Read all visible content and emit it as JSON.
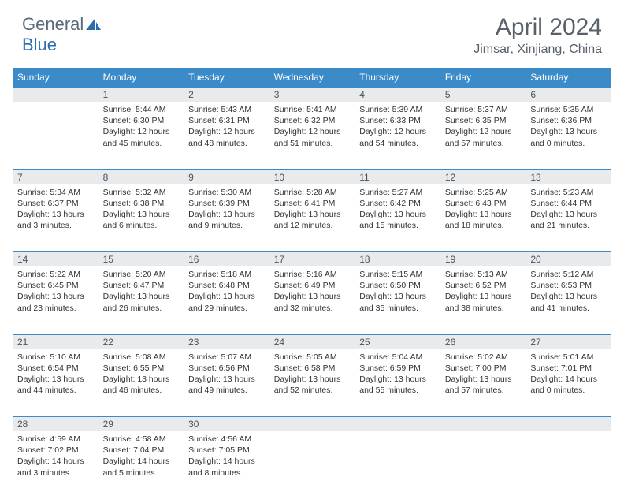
{
  "logo": {
    "text1": "General",
    "text2": "Blue"
  },
  "title": "April 2024",
  "location": "Jimsar, Xinjiang, China",
  "colors": {
    "header_bg": "#3b8bc9",
    "header_text": "#ffffff",
    "daynum_bg": "#e9eaeb",
    "border": "#3b8bc9",
    "title_color": "#58606a",
    "logo_color": "#5a6a78",
    "text_color": "#333333"
  },
  "weekdays": [
    "Sunday",
    "Monday",
    "Tuesday",
    "Wednesday",
    "Thursday",
    "Friday",
    "Saturday"
  ],
  "weeks": [
    {
      "days": [
        {
          "n": "",
          "lines": []
        },
        {
          "n": "1",
          "lines": [
            "Sunrise: 5:44 AM",
            "Sunset: 6:30 PM",
            "Daylight: 12 hours and 45 minutes."
          ]
        },
        {
          "n": "2",
          "lines": [
            "Sunrise: 5:43 AM",
            "Sunset: 6:31 PM",
            "Daylight: 12 hours and 48 minutes."
          ]
        },
        {
          "n": "3",
          "lines": [
            "Sunrise: 5:41 AM",
            "Sunset: 6:32 PM",
            "Daylight: 12 hours and 51 minutes."
          ]
        },
        {
          "n": "4",
          "lines": [
            "Sunrise: 5:39 AM",
            "Sunset: 6:33 PM",
            "Daylight: 12 hours and 54 minutes."
          ]
        },
        {
          "n": "5",
          "lines": [
            "Sunrise: 5:37 AM",
            "Sunset: 6:35 PM",
            "Daylight: 12 hours and 57 minutes."
          ]
        },
        {
          "n": "6",
          "lines": [
            "Sunrise: 5:35 AM",
            "Sunset: 6:36 PM",
            "Daylight: 13 hours and 0 minutes."
          ]
        }
      ]
    },
    {
      "days": [
        {
          "n": "7",
          "lines": [
            "Sunrise: 5:34 AM",
            "Sunset: 6:37 PM",
            "Daylight: 13 hours and 3 minutes."
          ]
        },
        {
          "n": "8",
          "lines": [
            "Sunrise: 5:32 AM",
            "Sunset: 6:38 PM",
            "Daylight: 13 hours and 6 minutes."
          ]
        },
        {
          "n": "9",
          "lines": [
            "Sunrise: 5:30 AM",
            "Sunset: 6:39 PM",
            "Daylight: 13 hours and 9 minutes."
          ]
        },
        {
          "n": "10",
          "lines": [
            "Sunrise: 5:28 AM",
            "Sunset: 6:41 PM",
            "Daylight: 13 hours and 12 minutes."
          ]
        },
        {
          "n": "11",
          "lines": [
            "Sunrise: 5:27 AM",
            "Sunset: 6:42 PM",
            "Daylight: 13 hours and 15 minutes."
          ]
        },
        {
          "n": "12",
          "lines": [
            "Sunrise: 5:25 AM",
            "Sunset: 6:43 PM",
            "Daylight: 13 hours and 18 minutes."
          ]
        },
        {
          "n": "13",
          "lines": [
            "Sunrise: 5:23 AM",
            "Sunset: 6:44 PM",
            "Daylight: 13 hours and 21 minutes."
          ]
        }
      ]
    },
    {
      "days": [
        {
          "n": "14",
          "lines": [
            "Sunrise: 5:22 AM",
            "Sunset: 6:45 PM",
            "Daylight: 13 hours and 23 minutes."
          ]
        },
        {
          "n": "15",
          "lines": [
            "Sunrise: 5:20 AM",
            "Sunset: 6:47 PM",
            "Daylight: 13 hours and 26 minutes."
          ]
        },
        {
          "n": "16",
          "lines": [
            "Sunrise: 5:18 AM",
            "Sunset: 6:48 PM",
            "Daylight: 13 hours and 29 minutes."
          ]
        },
        {
          "n": "17",
          "lines": [
            "Sunrise: 5:16 AM",
            "Sunset: 6:49 PM",
            "Daylight: 13 hours and 32 minutes."
          ]
        },
        {
          "n": "18",
          "lines": [
            "Sunrise: 5:15 AM",
            "Sunset: 6:50 PM",
            "Daylight: 13 hours and 35 minutes."
          ]
        },
        {
          "n": "19",
          "lines": [
            "Sunrise: 5:13 AM",
            "Sunset: 6:52 PM",
            "Daylight: 13 hours and 38 minutes."
          ]
        },
        {
          "n": "20",
          "lines": [
            "Sunrise: 5:12 AM",
            "Sunset: 6:53 PM",
            "Daylight: 13 hours and 41 minutes."
          ]
        }
      ]
    },
    {
      "days": [
        {
          "n": "21",
          "lines": [
            "Sunrise: 5:10 AM",
            "Sunset: 6:54 PM",
            "Daylight: 13 hours and 44 minutes."
          ]
        },
        {
          "n": "22",
          "lines": [
            "Sunrise: 5:08 AM",
            "Sunset: 6:55 PM",
            "Daylight: 13 hours and 46 minutes."
          ]
        },
        {
          "n": "23",
          "lines": [
            "Sunrise: 5:07 AM",
            "Sunset: 6:56 PM",
            "Daylight: 13 hours and 49 minutes."
          ]
        },
        {
          "n": "24",
          "lines": [
            "Sunrise: 5:05 AM",
            "Sunset: 6:58 PM",
            "Daylight: 13 hours and 52 minutes."
          ]
        },
        {
          "n": "25",
          "lines": [
            "Sunrise: 5:04 AM",
            "Sunset: 6:59 PM",
            "Daylight: 13 hours and 55 minutes."
          ]
        },
        {
          "n": "26",
          "lines": [
            "Sunrise: 5:02 AM",
            "Sunset: 7:00 PM",
            "Daylight: 13 hours and 57 minutes."
          ]
        },
        {
          "n": "27",
          "lines": [
            "Sunrise: 5:01 AM",
            "Sunset: 7:01 PM",
            "Daylight: 14 hours and 0 minutes."
          ]
        }
      ]
    },
    {
      "days": [
        {
          "n": "28",
          "lines": [
            "Sunrise: 4:59 AM",
            "Sunset: 7:02 PM",
            "Daylight: 14 hours and 3 minutes."
          ]
        },
        {
          "n": "29",
          "lines": [
            "Sunrise: 4:58 AM",
            "Sunset: 7:04 PM",
            "Daylight: 14 hours and 5 minutes."
          ]
        },
        {
          "n": "30",
          "lines": [
            "Sunrise: 4:56 AM",
            "Sunset: 7:05 PM",
            "Daylight: 14 hours and 8 minutes."
          ]
        },
        {
          "n": "",
          "lines": []
        },
        {
          "n": "",
          "lines": []
        },
        {
          "n": "",
          "lines": []
        },
        {
          "n": "",
          "lines": []
        }
      ]
    }
  ]
}
